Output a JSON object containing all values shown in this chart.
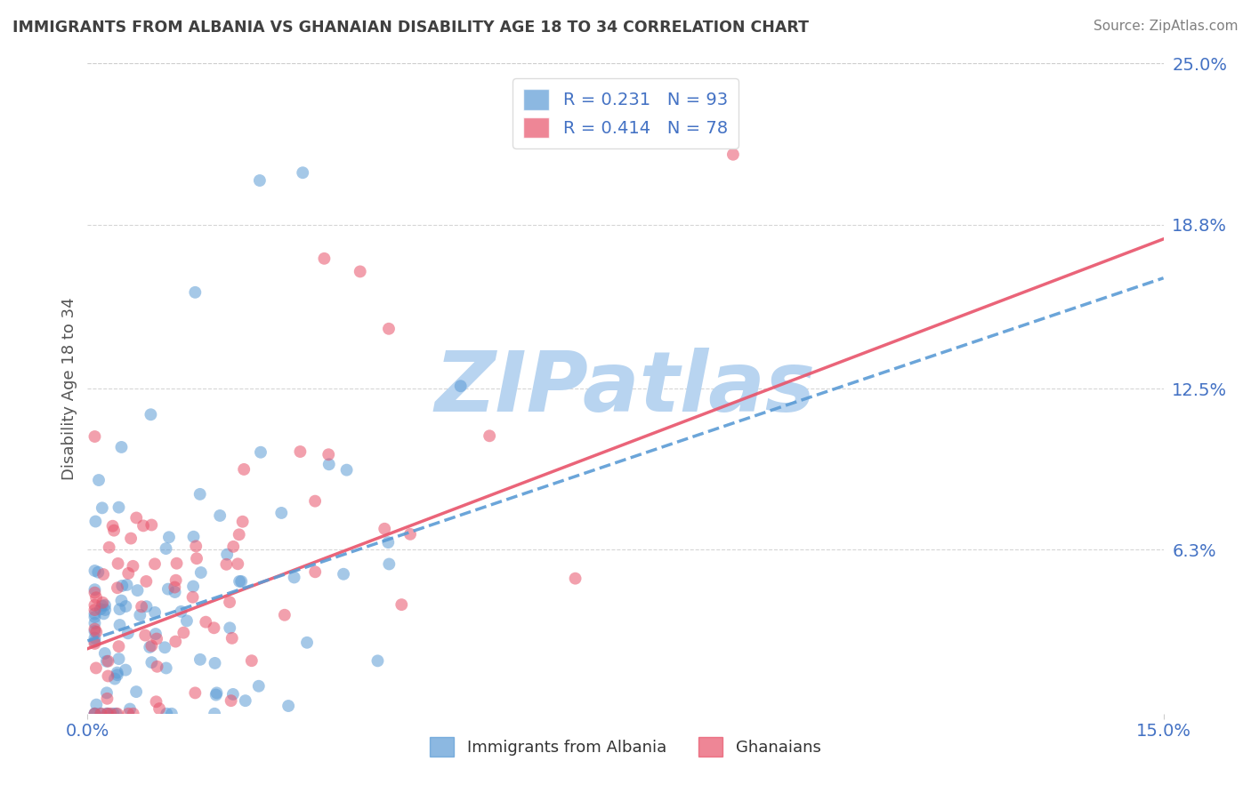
{
  "title": "IMMIGRANTS FROM ALBANIA VS GHANAIAN DISABILITY AGE 18 TO 34 CORRELATION CHART",
  "source": "Source: ZipAtlas.com",
  "ylabel": "Disability Age 18 to 34",
  "xlim": [
    0.0,
    0.15
  ],
  "ylim": [
    0.0,
    0.25
  ],
  "xtick_positions": [
    0.0,
    0.15
  ],
  "xtick_labels": [
    "0.0%",
    "15.0%"
  ],
  "ytick_values_right": [
    0.063,
    0.125,
    0.188,
    0.25
  ],
  "ytick_labels_right": [
    "6.3%",
    "12.5%",
    "18.8%",
    "25.0%"
  ],
  "albania_color": "#5b9bd5",
  "ghanaian_color": "#e8536a",
  "albania_R": 0.231,
  "albania_N": 93,
  "ghanaian_R": 0.414,
  "ghanaian_N": 78,
  "watermark": "ZIPatlas",
  "watermark_color": "#b8d4f0",
  "legend_label_albania": "Immigrants from Albania",
  "legend_label_ghanaian": "Ghanaians",
  "background_color": "#ffffff",
  "grid_color": "#cccccc",
  "title_color": "#404040",
  "axis_label_color": "#4472c4",
  "tick_color": "#4472c4",
  "source_color": "#808080",
  "alb_line_intercept": 0.028,
  "alb_line_slope": 0.93,
  "gha_line_intercept": 0.025,
  "gha_line_slope": 1.05
}
